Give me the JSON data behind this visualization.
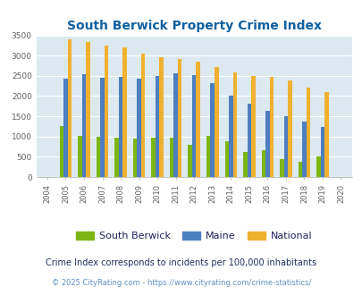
{
  "title": "South Berwick Property Crime Index",
  "years": [
    2004,
    2005,
    2006,
    2007,
    2008,
    2009,
    2010,
    2011,
    2012,
    2013,
    2014,
    2015,
    2016,
    2017,
    2018,
    2019,
    2020
  ],
  "south_berwick": [
    0,
    1250,
    1020,
    1000,
    980,
    940,
    980,
    980,
    790,
    1010,
    880,
    610,
    670,
    440,
    380,
    500,
    0
  ],
  "maine": [
    0,
    2440,
    2540,
    2460,
    2470,
    2440,
    2490,
    2560,
    2510,
    2320,
    2000,
    1820,
    1640,
    1510,
    1360,
    1240,
    0
  ],
  "national": [
    0,
    3410,
    3330,
    3250,
    3210,
    3040,
    2950,
    2910,
    2860,
    2720,
    2590,
    2500,
    2470,
    2380,
    2200,
    2110,
    0
  ],
  "color_sb": "#7db614",
  "color_maine": "#4d7ebf",
  "color_national": "#f0b030",
  "ylim": [
    0,
    3500
  ],
  "yticks": [
    0,
    500,
    1000,
    1500,
    2000,
    2500,
    3000,
    3500
  ],
  "bg_color": "#dce9f0",
  "legend_labels": [
    "South Berwick",
    "Maine",
    "National"
  ],
  "footnote1": "Crime Index corresponds to incidents per 100,000 inhabitants",
  "footnote2": "© 2025 CityRating.com - https://www.cityrating.com/crime-statistics/",
  "title_color": "#1060a0",
  "footnote1_color": "#203060",
  "footnote2_color": "#6090c0",
  "bar_width": 0.22,
  "bar_gap": 0.0
}
